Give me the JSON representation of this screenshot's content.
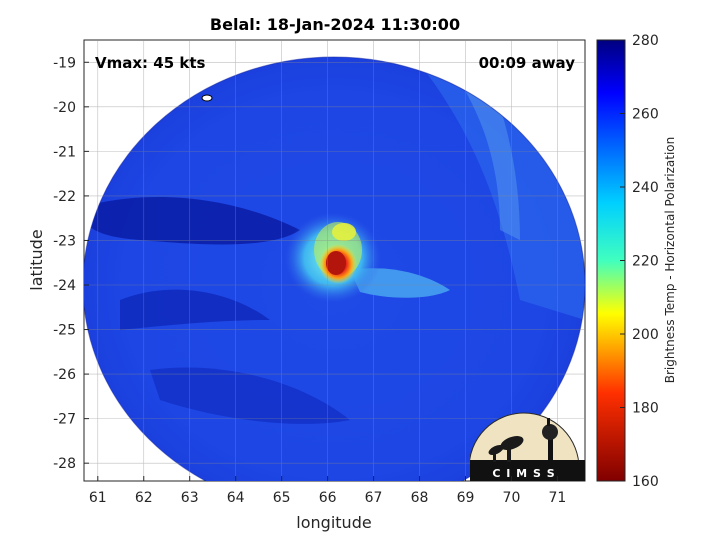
{
  "title": "Belal: 18-Jan-2024 11:30:00",
  "vmax_text": "Vmax: 45 kts",
  "time_away_text": "00:09 away",
  "logo_text": "C I M S S",
  "axes": {
    "xlabel": "longitude",
    "ylabel": "latitude",
    "xlim": [
      60.7,
      71.6
    ],
    "ylim": [
      -28.4,
      -18.5
    ],
    "xticks": [
      "61",
      "62",
      "63",
      "64",
      "65",
      "66",
      "67",
      "68",
      "69",
      "70",
      "71"
    ],
    "yticks": [
      "-19",
      "-20",
      "-21",
      "-22",
      "-23",
      "-24",
      "-25",
      "-26",
      "-27",
      "-28"
    ],
    "grid": true
  },
  "colorbar": {
    "label": "Brightness Temp - Horizontal Polarization",
    "ticks": [
      "280",
      "260",
      "240",
      "220",
      "200",
      "180",
      "160"
    ],
    "range": [
      160,
      280
    ],
    "colormap": "jet-reversed",
    "colors": {
      "top": "#000080",
      "blue": "#0000ff",
      "cyan": "#00ffff",
      "yellow": "#ffff00",
      "red": "#ff0000",
      "bottom": "#800000"
    }
  },
  "colors": {
    "background_swath": "#1a3fe0",
    "deep_band": "#0b1fa8",
    "cold_core": "#c0180e",
    "warm_ring": "#ffd21a"
  }
}
